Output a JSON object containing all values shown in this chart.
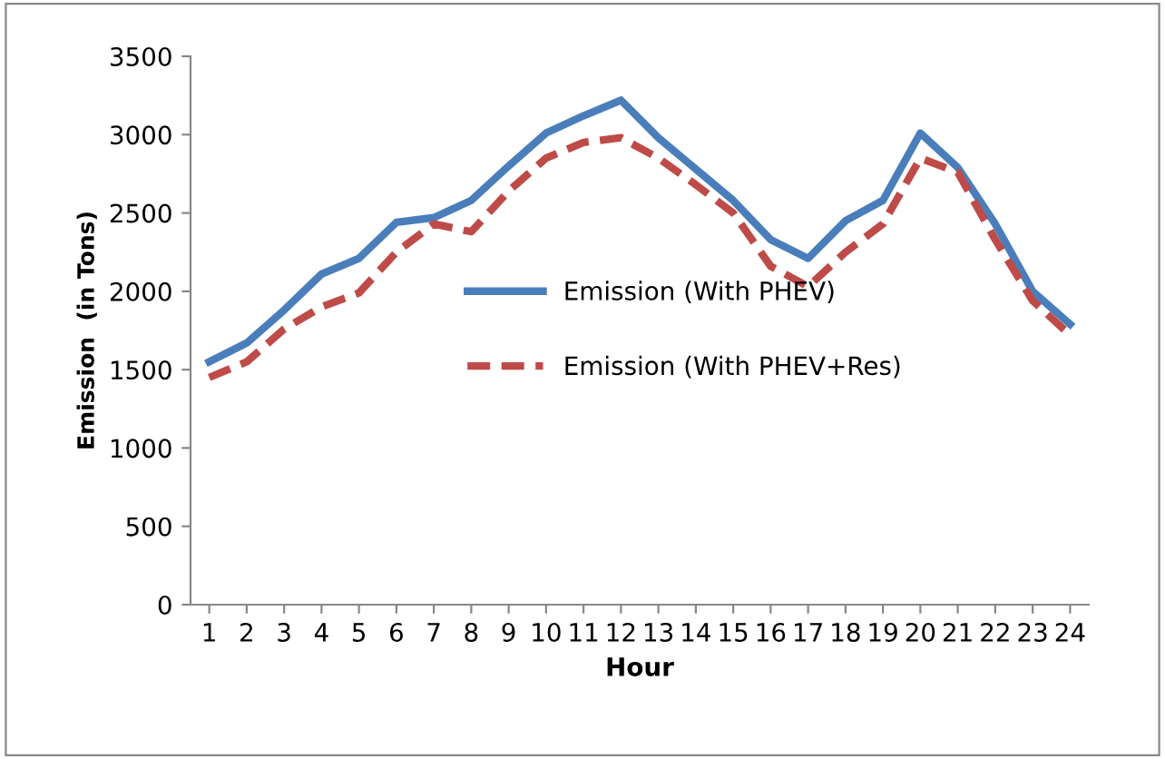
{
  "chart_data": {
    "type": "line",
    "xlabel": "Hour",
    "ylabel": "Emission  (in Tons)",
    "categories": [
      "1",
      "2",
      "3",
      "4",
      "5",
      "6",
      "7",
      "8",
      "9",
      "10",
      "11",
      "12",
      "13",
      "14",
      "15",
      "16",
      "17",
      "18",
      "19",
      "20",
      "21",
      "22",
      "23",
      "24"
    ],
    "series": [
      {
        "name": "Emission (With PHEV)",
        "color": "#4a7ebb",
        "line_style": "solid",
        "values": [
          1550,
          1670,
          1880,
          2110,
          2210,
          2440,
          2470,
          2580,
          2800,
          3010,
          3120,
          3220,
          2980,
          2780,
          2580,
          2330,
          2210,
          2450,
          2580,
          3010,
          2790,
          2430,
          2000,
          1790
        ]
      },
      {
        "name": "Emission (With PHEV+Res)",
        "color": "#be4b48",
        "line_style": "dashed",
        "values": [
          1450,
          1550,
          1760,
          1900,
          1990,
          2250,
          2430,
          2380,
          2640,
          2850,
          2950,
          2980,
          2850,
          2680,
          2500,
          2160,
          2030,
          2250,
          2430,
          2850,
          2760,
          2330,
          1940,
          1720
        ]
      }
    ],
    "ylim": [
      0,
      3500
    ],
    "yticks": [
      0,
      500,
      1000,
      1500,
      2000,
      2500,
      3000,
      3500
    ],
    "grid": false,
    "legend": "center",
    "marker": "none"
  }
}
